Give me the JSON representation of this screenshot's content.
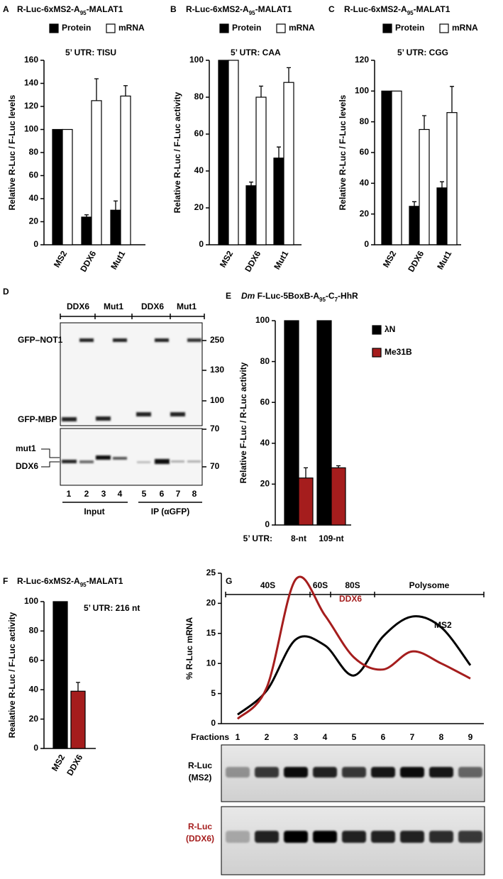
{
  "chart_data": [
    {
      "panel_label": "A",
      "type": "bar",
      "title": [
        "R-Luc-6xMS2-A",
        "95",
        "-MALAT1"
      ],
      "annotation": "5’ UTR: TISU",
      "y_label": "Relative R-Luc / F-Luc levels",
      "categories": [
        "MS2",
        "DDX6",
        "Mut1"
      ],
      "series": [
        {
          "name": "Protein",
          "color": "#000000",
          "values": [
            100,
            24,
            30
          ],
          "errors": [
            null,
            2,
            8
          ]
        },
        {
          "name": "mRNA",
          "color": "#ffffff",
          "values": [
            100,
            125,
            129
          ],
          "errors": [
            null,
            19,
            9
          ]
        }
      ],
      "ylim": [
        0,
        160
      ],
      "yticks": [
        0,
        20,
        40,
        60,
        80,
        100,
        120,
        140,
        160
      ],
      "legend": "top"
    },
    {
      "panel_label": "B",
      "type": "bar",
      "title": [
        "R-Luc-6xMS2-A",
        "95",
        "-MALAT1"
      ],
      "annotation": "5’ UTR: CAA",
      "y_label": "Relative R-Luc / F-Luc activity",
      "categories": [
        "MS2",
        "DDX6",
        "Mut1"
      ],
      "series": [
        {
          "name": "Protein",
          "color": "#000000",
          "values": [
            100,
            32,
            47
          ],
          "errors": [
            null,
            2,
            6
          ]
        },
        {
          "name": "mRNA",
          "color": "#ffffff",
          "values": [
            100,
            80,
            88
          ],
          "errors": [
            null,
            6,
            8
          ]
        }
      ],
      "ylim": [
        0,
        100
      ],
      "yticks": [
        0,
        20,
        40,
        60,
        80,
        100
      ],
      "legend": "top"
    },
    {
      "panel_label": "C",
      "type": "bar",
      "title": [
        "R-Luc-6xMS2-A",
        "95",
        "-MALAT1"
      ],
      "annotation": "5’ UTR: CGG",
      "y_label": "Relative R-Luc / F-Luc levels",
      "categories": [
        "MS2",
        "DDX6",
        "Mut1"
      ],
      "series": [
        {
          "name": "Protein",
          "color": "#000000",
          "values": [
            100,
            25,
            37
          ],
          "errors": [
            null,
            3,
            4
          ]
        },
        {
          "name": "mRNA",
          "color": "#ffffff",
          "values": [
            100,
            75,
            86
          ],
          "errors": [
            null,
            9,
            17
          ]
        }
      ],
      "ylim": [
        0,
        120
      ],
      "yticks": [
        0,
        20,
        40,
        60,
        80,
        100,
        120
      ],
      "legend": "top"
    },
    {
      "panel_label": "E",
      "type": "bar",
      "title": [
        "Dm",
        " F-Luc-5BoxB-A",
        "95",
        "-C",
        "7",
        "-HhR"
      ],
      "y_label": "Relative F-Luc / R-Luc activity",
      "x_label": "5’ UTR:",
      "categories": [
        "8-nt",
        "109-nt"
      ],
      "series": [
        {
          "name": "λN",
          "color": "#000000",
          "values": [
            100,
            100
          ],
          "errors": [
            null,
            null
          ]
        },
        {
          "name": "Me31B",
          "color": "#a51d1d",
          "values": [
            23,
            28
          ],
          "errors": [
            5,
            1
          ]
        }
      ],
      "ylim": [
        0,
        100
      ],
      "yticks": [
        0,
        20,
        40,
        60,
        80,
        100
      ],
      "legend": "right"
    },
    {
      "panel_label": "F",
      "type": "bar",
      "title": [
        "R-Luc-6xMS2-A",
        "95",
        "-MALAT1"
      ],
      "annotation": "5’ UTR: 216 nt",
      "y_label": "Realative R-Luc / F-Luc activity",
      "categories": [
        "MS2",
        "DDX6"
      ],
      "values": [
        100,
        39
      ],
      "errors": [
        null,
        6
      ],
      "colors": [
        "#000000",
        "#a51d1d"
      ],
      "ylim": [
        0,
        100
      ],
      "yticks": [
        0,
        20,
        40,
        60,
        80,
        100
      ]
    },
    {
      "panel_label": "G",
      "type": "line",
      "regions": [
        "40S",
        "60S",
        "80S",
        "Polysome"
      ],
      "y_label": "% R-Luc mRNA",
      "x_label": "Fractions",
      "x": [
        1,
        2,
        3,
        4,
        5,
        6,
        7,
        8,
        9
      ],
      "xlim": [
        1,
        9
      ],
      "series": [
        {
          "name": "MS2",
          "color": "#000000",
          "values": [
            1.5,
            5.5,
            14,
            13,
            8,
            14.5,
            17.8,
            16,
            9.7
          ]
        },
        {
          "name": "DDX6",
          "color": "#a51d1d",
          "values": [
            0.8,
            6,
            24,
            18,
            11,
            9,
            12,
            10,
            7.5
          ]
        }
      ],
      "ylim": [
        0,
        25
      ],
      "yticks": [
        0,
        5,
        10,
        15,
        20,
        25
      ]
    }
  ],
  "blot_d": {
    "panel_label": "D",
    "lanes": [
      "DDX6",
      "Mut1",
      "DDX6",
      "Mut1"
    ],
    "bands": [
      "GFP–NOT1",
      "GFP-MBP",
      "mut1",
      "DDX6"
    ],
    "markers": [
      "250",
      "130",
      "100",
      "70",
      "70"
    ],
    "lane_numbers": [
      "1",
      "2",
      "3",
      "4",
      "5",
      "6",
      "7",
      "8"
    ],
    "groups": [
      "Input",
      "IP (αGFP)"
    ]
  },
  "blot_g": {
    "rows": [
      [
        "R-Luc",
        "(MS2)"
      ],
      [
        "R-Luc",
        "(DDX6)"
      ]
    ]
  }
}
